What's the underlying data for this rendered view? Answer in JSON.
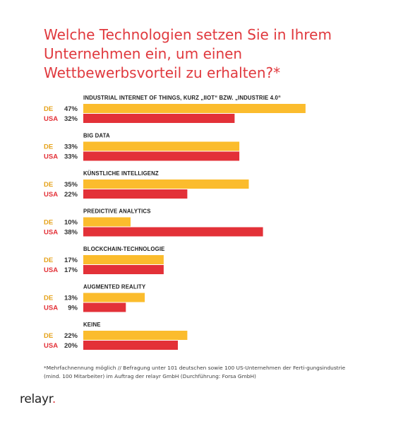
{
  "title": "Welche Technologien setzen Sie in Ihrem Unternehmen ein, um einen Wettbewerbsvorteil zu erhalten?*",
  "footnote": "*Mehrfachnennung möglich // Befragung unter 101 deutschen sowie 100 US-Unternehmen der Ferti-gungsindustrie (mind. 100 Mitarbeiter) im Auftrag der relayr GmbH (Durchführung: Forsa GmbH)",
  "logo": {
    "text": "relayr",
    "dot": "."
  },
  "colors": {
    "title": "#e0393e",
    "de": "#fbbc2d",
    "usa": "#e33138",
    "de_label": "#e5a21a",
    "usa_label": "#e33138"
  },
  "chart_data": {
    "type": "bar",
    "orientation": "horizontal",
    "unit": "%",
    "categories": [
      "INDUSTRIAL INTERNET OF THINGS, KURZ „IIOT“ BZW. „INDUSTRIE 4.0“",
      "BIG DATA",
      "KÜNSTLICHE INTELLIGENZ",
      "PREDICTIVE ANALYTICS",
      "BLOCKCHAIN-TECHNOLOGIE",
      "AUGMENTED REALITY",
      "KEINE"
    ],
    "series": [
      {
        "name": "DE",
        "color": "#fbbc2d",
        "values": [
          47,
          33,
          35,
          10,
          17,
          13,
          22
        ]
      },
      {
        "name": "USA",
        "color": "#e33138",
        "values": [
          32,
          33,
          22,
          38,
          17,
          9,
          20
        ]
      }
    ],
    "xlim": [
      0,
      100
    ],
    "grid": false,
    "legend": "none"
  }
}
